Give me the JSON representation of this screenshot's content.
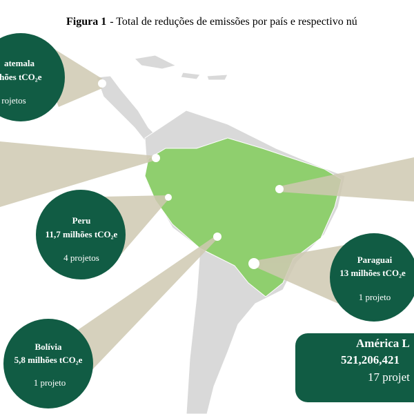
{
  "header": {
    "label": "Figura 1",
    "title": "- Total de  reduções de emissões por país e respectivo nú"
  },
  "callouts": [
    {
      "country": "atemala",
      "emissions": "lhões tCO₂e",
      "projects": "rojetos"
    },
    {
      "country": "Peru",
      "emissions": "11,7 milhões tCO₂e",
      "projects": "4 projetos"
    },
    {
      "country": "Paraguai",
      "emissions": "13 milhões tCO₂e",
      "projects": "1 projeto"
    },
    {
      "country": "Bolívia",
      "emissions": "5,8 milhões tCO₂e",
      "projects": "1 projeto"
    }
  ],
  "total": {
    "region": "América L",
    "emissions": "521,206,421",
    "projects": "17 projet"
  }
}
